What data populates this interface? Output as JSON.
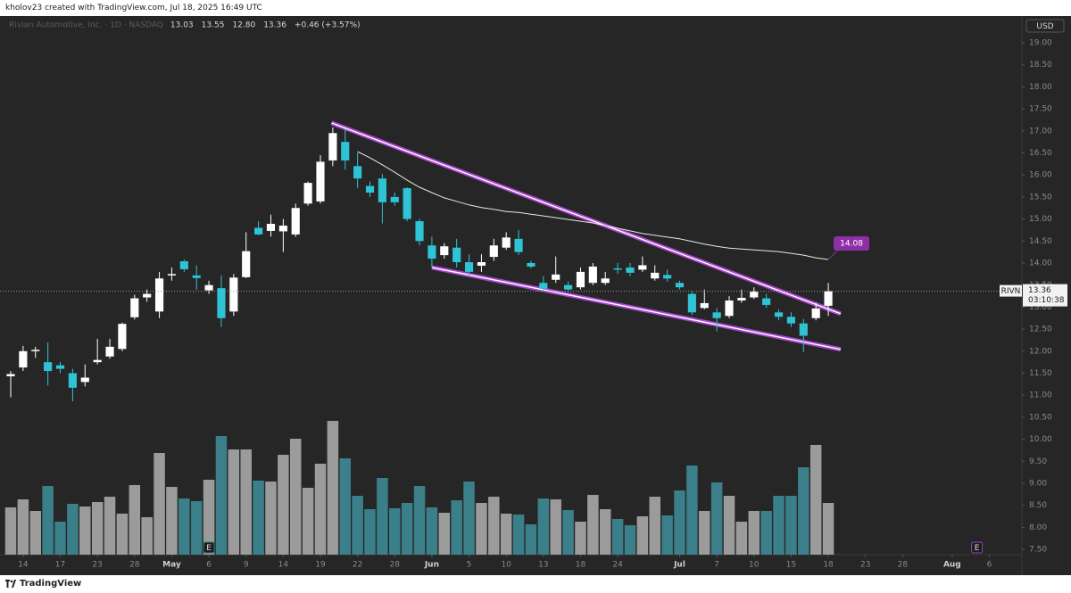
{
  "header": {
    "text": "kholov23 created with TradingView.com, Jul 18, 2025 16:49 UTC"
  },
  "footer": {
    "brand": "TradingView"
  },
  "chart_data": {
    "type": "candlestick",
    "title": "Rivian Automotive, Inc. · 1D · NASDAQ",
    "legend_values": [
      "13.03",
      "13.55",
      "12.80",
      "13.36",
      "+0.46 (+3.57%)"
    ],
    "currency": "USD",
    "open": [
      11.43,
      11.63,
      12.0,
      11.75,
      11.68,
      11.5,
      11.3,
      11.75,
      11.88,
      12.05,
      12.77,
      13.22,
      12.9,
      13.72,
      14.04,
      13.72,
      13.38,
      13.43,
      12.9,
      13.68,
      14.8,
      14.73,
      14.72,
      14.65,
      15.35,
      15.4,
      16.33,
      16.75,
      16.2,
      15.75,
      15.92,
      15.5,
      15.7,
      14.95,
      14.4,
      14.18,
      14.35,
      14.02,
      13.94,
      14.14,
      14.35,
      14.55,
      14.0,
      13.55,
      13.62,
      13.5,
      13.45,
      13.55,
      13.55,
      13.88,
      13.9,
      13.85,
      13.65,
      13.73,
      13.55,
      13.3,
      12.98,
      12.88,
      12.8,
      13.15,
      13.22,
      13.2,
      12.88,
      12.78,
      12.63,
      12.75,
      13.03
    ],
    "high": [
      11.55,
      12.12,
      12.1,
      12.2,
      11.75,
      11.6,
      11.7,
      12.28,
      12.28,
      12.65,
      13.28,
      13.4,
      13.8,
      13.9,
      14.08,
      13.95,
      13.6,
      13.72,
      13.75,
      14.7,
      14.95,
      15.1,
      15.0,
      15.35,
      15.85,
      16.45,
      17.08,
      17.05,
      16.5,
      15.85,
      16.02,
      15.6,
      15.72,
      15.0,
      14.6,
      14.45,
      14.55,
      14.2,
      14.2,
      14.55,
      14.7,
      14.75,
      14.05,
      13.7,
      14.15,
      13.58,
      13.9,
      14.0,
      13.8,
      14.0,
      14.0,
      14.15,
      13.95,
      13.85,
      13.6,
      13.35,
      13.4,
      12.98,
      13.25,
      13.4,
      13.45,
      13.3,
      12.95,
      12.88,
      12.73,
      13.1,
      13.55
    ],
    "low": [
      10.95,
      11.55,
      11.85,
      11.22,
      11.5,
      10.86,
      11.2,
      11.7,
      11.83,
      12.0,
      12.72,
      13.12,
      12.75,
      13.6,
      13.8,
      13.4,
      13.3,
      12.55,
      12.8,
      13.66,
      14.63,
      14.6,
      14.25,
      14.6,
      15.3,
      15.35,
      16.2,
      16.12,
      15.7,
      15.5,
      14.9,
      15.3,
      14.95,
      14.4,
      13.9,
      14.1,
      13.9,
      13.7,
      13.8,
      14.05,
      14.3,
      14.18,
      13.88,
      13.37,
      13.55,
      13.35,
      13.4,
      13.5,
      13.5,
      13.75,
      13.7,
      13.8,
      13.6,
      13.58,
      13.4,
      12.82,
      12.95,
      12.45,
      12.75,
      13.1,
      13.18,
      12.98,
      12.7,
      12.55,
      11.98,
      12.7,
      12.8
    ],
    "close": [
      11.48,
      12.0,
      12.03,
      11.55,
      11.6,
      11.17,
      11.4,
      11.8,
      12.1,
      12.62,
      13.2,
      13.3,
      13.65,
      13.75,
      13.86,
      13.66,
      13.5,
      12.75,
      13.67,
      14.27,
      14.65,
      14.89,
      14.85,
      15.25,
      15.82,
      16.3,
      16.95,
      16.33,
      15.92,
      15.6,
      15.38,
      15.38,
      15.0,
      14.5,
      14.1,
      14.38,
      14.02,
      13.8,
      14.02,
      14.4,
      14.58,
      14.25,
      13.92,
      13.42,
      13.74,
      13.4,
      13.8,
      13.92,
      13.65,
      13.85,
      13.78,
      13.95,
      13.78,
      13.65,
      13.45,
      12.88,
      13.09,
      12.75,
      13.15,
      13.21,
      13.35,
      13.05,
      12.78,
      12.63,
      12.35,
      12.97,
      13.36
    ],
    "volume": [
      21.2,
      24.8,
      19.6,
      30.8,
      14.8,
      22.8,
      21.6,
      23.6,
      26,
      18.4,
      31.2,
      16.8,
      45.6,
      30.4,
      25.2,
      24,
      33.6,
      53.2,
      47.2,
      47.2,
      33.2,
      32.8,
      44.8,
      52,
      30,
      40.8,
      60,
      43.2,
      26.4,
      20.4,
      34.4,
      20.8,
      23.2,
      30.8,
      21.2,
      18.8,
      24.4,
      32.8,
      23.2,
      26,
      18.4,
      18,
      13.6,
      25.2,
      24.8,
      20,
      14.8,
      26.8,
      20.4,
      16,
      13.2,
      17.2,
      26,
      17.6,
      28.8,
      40,
      19.6,
      32.4,
      26.4,
      14.8,
      19.6,
      19.6,
      26.4,
      26.4,
      39.2,
      49.2,
      23.2
    ],
    "up_color": "#ffffff",
    "down_color": "#2ec4d6",
    "volume_up_color": "#9b9b9b",
    "volume_down_color": "#3a7f89",
    "ma": {
      "color": "#e8e8e8",
      "label_color": "#8e2fa8",
      "values": [
        null,
        null,
        null,
        null,
        null,
        null,
        null,
        null,
        null,
        null,
        null,
        null,
        null,
        null,
        null,
        null,
        null,
        null,
        null,
        null,
        null,
        null,
        null,
        null,
        null,
        null,
        null,
        null,
        16.53,
        16.39,
        16.23,
        16.06,
        15.88,
        15.72,
        15.6,
        15.48,
        15.4,
        15.32,
        15.26,
        15.22,
        15.17,
        15.15,
        15.11,
        15.07,
        15.03,
        14.99,
        14.95,
        14.91,
        14.85,
        14.79,
        14.73,
        14.67,
        14.63,
        14.59,
        14.55,
        14.49,
        14.43,
        14.38,
        14.34,
        14.32,
        14.3,
        14.28,
        14.26,
        14.22,
        14.18,
        14.12,
        14.08
      ]
    },
    "trendlines": [
      {
        "x": [
          25.9,
          67
        ],
        "y": [
          17.18,
          12.85
        ]
      },
      {
        "x": [
          34,
          67
        ],
        "y": [
          13.9,
          12.04
        ]
      }
    ],
    "trendline_color": "#a847cc",
    "price_line": {
      "symbol": "RIVN",
      "countdown": "03:10:38"
    },
    "events": [
      {
        "x": 16,
        "label": "E",
        "color": "#2d7f7a"
      },
      {
        "x": 78,
        "label": "E",
        "color": "#9b3fc0"
      }
    ],
    "xlim": [
      -0.8646,
      81.63
    ],
    "ylim": [
      7.381,
      19.607
    ],
    "volume_lim": [
      0,
      241.6
    ],
    "xticks": [
      {
        "value": 1,
        "label": "14"
      },
      {
        "value": 4,
        "label": "17"
      },
      {
        "value": 7,
        "label": "23"
      },
      {
        "value": 10,
        "label": "28"
      },
      {
        "value": 13,
        "label": "May"
      },
      {
        "value": 16,
        "label": "6"
      },
      {
        "value": 19,
        "label": "9"
      },
      {
        "value": 22,
        "label": "14"
      },
      {
        "value": 25,
        "label": "19"
      },
      {
        "value": 28,
        "label": "22"
      },
      {
        "value": 31,
        "label": "28"
      },
      {
        "value": 34,
        "label": "Jun"
      },
      {
        "value": 37,
        "label": "5"
      },
      {
        "value": 40,
        "label": "10"
      },
      {
        "value": 43,
        "label": "13"
      },
      {
        "value": 46,
        "label": "18"
      },
      {
        "value": 49,
        "label": "24"
      },
      {
        "value": 54,
        "label": "Jul"
      },
      {
        "value": 57,
        "label": "7"
      },
      {
        "value": 60,
        "label": "10"
      },
      {
        "value": 63,
        "label": "15"
      },
      {
        "value": 66,
        "label": "18"
      },
      {
        "value": 69,
        "label": "23"
      },
      {
        "value": 72,
        "label": "28"
      },
      {
        "value": 76,
        "label": "Aug"
      },
      {
        "value": 79,
        "label": "6"
      }
    ],
    "yticks": [
      {
        "value": 7.5,
        "label": "7.50"
      },
      {
        "value": 8,
        "label": "8.00"
      },
      {
        "value": 8.5,
        "label": "8.50"
      },
      {
        "value": 9,
        "label": "9.00"
      },
      {
        "value": 9.5,
        "label": "9.50"
      },
      {
        "value": 10,
        "label": "10.00"
      },
      {
        "value": 10.5,
        "label": "10.50"
      },
      {
        "value": 11,
        "label": "11.00"
      },
      {
        "value": 11.5,
        "label": "11.50"
      },
      {
        "value": 12,
        "label": "12.00"
      },
      {
        "value": 12.5,
        "label": "12.50"
      },
      {
        "value": 13,
        "label": "13.00"
      },
      {
        "value": 13.5,
        "label": "13.50"
      },
      {
        "value": 14,
        "label": "14.00"
      },
      {
        "value": 14.5,
        "label": "14.50"
      },
      {
        "value": 15,
        "label": "15.00"
      },
      {
        "value": 15.5,
        "label": "15.50"
      },
      {
        "value": 16,
        "label": "16.00"
      },
      {
        "value": 16.5,
        "label": "16.50"
      },
      {
        "value": 17,
        "label": "17.00"
      },
      {
        "value": 17.5,
        "label": "17.50"
      },
      {
        "value": 18,
        "label": "18.00"
      },
      {
        "value": 18.5,
        "label": "18.50"
      },
      {
        "value": 19,
        "label": "19.00"
      }
    ]
  }
}
